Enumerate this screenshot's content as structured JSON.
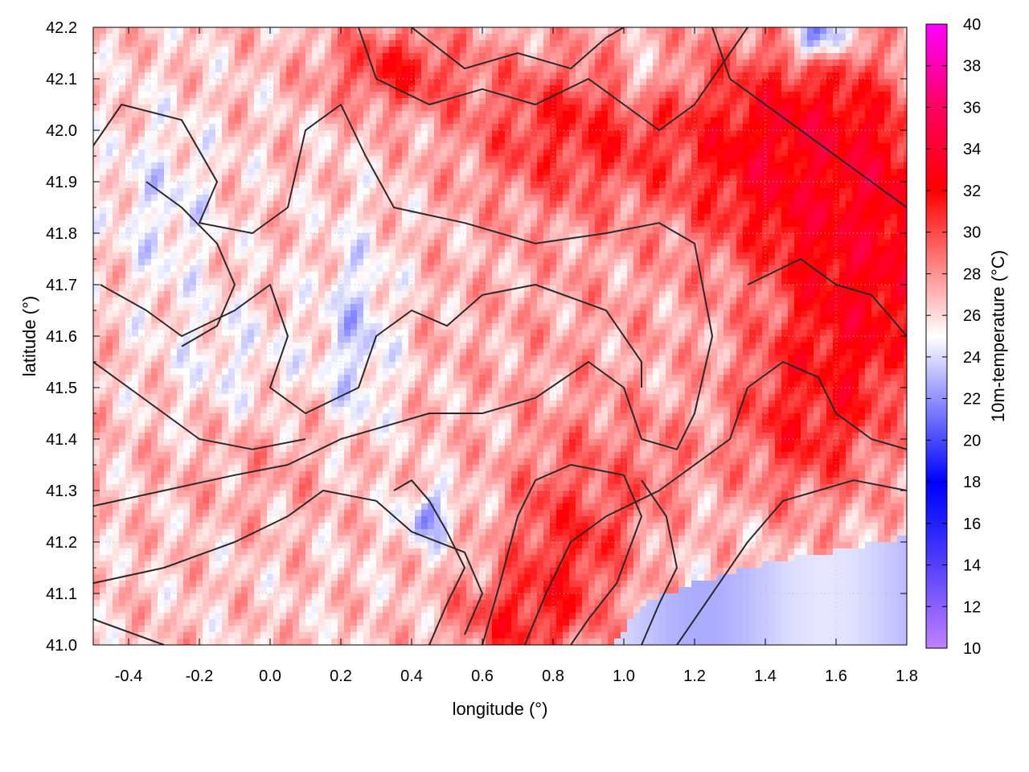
{
  "chart_data": {
    "type": "heatmap",
    "xlabel": "longitude (°)",
    "ylabel": "latitude (°)",
    "colorbar_label": "10m-temperature (°C)",
    "xlim": [
      -0.5,
      1.8
    ],
    "ylim": [
      41.0,
      42.2
    ],
    "x_ticks": [
      -0.4,
      -0.2,
      0.0,
      0.2,
      0.4,
      0.6,
      0.8,
      1.0,
      1.2,
      1.4,
      1.6,
      1.8
    ],
    "x_tick_labels": [
      "-0.4",
      "-0.2",
      "0.0",
      "0.2",
      "0.4",
      "0.6",
      "0.8",
      "1.0",
      "1.2",
      "1.4",
      "1.6",
      "1.8"
    ],
    "y_ticks": [
      41.0,
      41.1,
      41.2,
      41.3,
      41.4,
      41.5,
      41.6,
      41.7,
      41.8,
      41.9,
      42.0,
      42.1,
      42.2
    ],
    "y_tick_labels": [
      "41.0",
      "41.1",
      "41.2",
      "41.3",
      "41.4",
      "41.5",
      "41.6",
      "41.7",
      "41.8",
      "41.9",
      "42.0",
      "42.1",
      "42.2"
    ],
    "colorbar_range": [
      10,
      40
    ],
    "colorbar_ticks": [
      10,
      12,
      14,
      16,
      18,
      20,
      22,
      24,
      26,
      28,
      30,
      32,
      34,
      36,
      38,
      40
    ],
    "colorbar_tick_labels": [
      "10",
      "12",
      "14",
      "16",
      "18",
      "20",
      "22",
      "24",
      "26",
      "28",
      "30",
      "32",
      "34",
      "36",
      "38",
      "40"
    ],
    "colormap": [
      {
        "value": 10,
        "color": "#c080ff"
      },
      {
        "value": 16,
        "color": "#2020ff"
      },
      {
        "value": 18,
        "color": "#0000ff"
      },
      {
        "value": 25,
        "color": "#ffffff"
      },
      {
        "value": 32,
        "color": "#ff0000"
      },
      {
        "value": 36,
        "color": "#ff0060"
      },
      {
        "value": 40,
        "color": "#ff00ff"
      }
    ],
    "grid": true,
    "overlay": "terrain height contour lines",
    "field_description": "temperature mostly 25-29 °C over the interior, up to 31-34 °C in the north-east and near the coast around lon 0.7-1.1, cooler bluish 22-24 °C valleys around lon 0.2-0.4 and over the sea in the south-east",
    "temperature_blobs": [
      {
        "lon": 1.45,
        "lat": 41.95,
        "sx": 0.3,
        "sy": 0.22,
        "t": 33
      },
      {
        "lon": 1.7,
        "lat": 41.75,
        "sx": 0.2,
        "sy": 0.28,
        "t": 33
      },
      {
        "lon": 0.85,
        "lat": 42.0,
        "sx": 0.3,
        "sy": 0.15,
        "t": 31
      },
      {
        "lon": 0.35,
        "lat": 42.12,
        "sx": 0.2,
        "sy": 0.08,
        "t": 31
      },
      {
        "lon": 1.5,
        "lat": 41.45,
        "sx": 0.2,
        "sy": 0.18,
        "t": 31
      },
      {
        "lon": 0.85,
        "lat": 41.2,
        "sx": 0.18,
        "sy": 0.15,
        "t": 31
      },
      {
        "lon": 0.7,
        "lat": 41.05,
        "sx": 0.18,
        "sy": 0.08,
        "t": 31
      },
      {
        "lon": 1.0,
        "lat": 41.35,
        "sx": 0.2,
        "sy": 0.1,
        "t": 29
      },
      {
        "lon": 0.0,
        "lat": 41.35,
        "sx": 0.3,
        "sy": 0.12,
        "t": 27.5
      },
      {
        "lon": 0.85,
        "lat": 41.6,
        "sx": 0.4,
        "sy": 0.25,
        "t": 27.5
      },
      {
        "lon": -0.3,
        "lat": 41.85,
        "sx": 0.15,
        "sy": 0.18,
        "t": 24.5
      },
      {
        "lon": 0.25,
        "lat": 41.6,
        "sx": 0.1,
        "sy": 0.2,
        "t": 23.5
      },
      {
        "lon": 0.45,
        "lat": 41.25,
        "sx": 0.07,
        "sy": 0.05,
        "t": 22
      },
      {
        "lon": 1.55,
        "lat": 42.18,
        "sx": 0.07,
        "sy": 0.04,
        "t": 18
      },
      {
        "lon": 1.05,
        "lat": 42.1,
        "sx": 0.08,
        "sy": 0.05,
        "t": 24
      },
      {
        "lon": -0.1,
        "lat": 41.55,
        "sx": 0.2,
        "sy": 0.12,
        "t": 25
      }
    ],
    "sea_region": {
      "coast": [
        [
          0.97,
          41.0
        ],
        [
          1.05,
          41.08
        ],
        [
          1.2,
          41.12
        ],
        [
          1.35,
          41.15
        ],
        [
          1.5,
          41.17
        ],
        [
          1.65,
          41.19
        ],
        [
          1.8,
          41.21
        ]
      ],
      "t": 23.5
    },
    "contours": [
      [
        [
          -0.5,
          41.97
        ],
        [
          -0.42,
          42.05
        ],
        [
          -0.25,
          42.02
        ],
        [
          -0.15,
          41.9
        ],
        [
          -0.2,
          41.82
        ],
        [
          -0.05,
          41.8
        ],
        [
          0.05,
          41.85
        ],
        [
          0.1,
          42.0
        ],
        [
          0.2,
          42.05
        ],
        [
          0.27,
          41.95
        ],
        [
          0.35,
          41.85
        ],
        [
          0.55,
          41.82
        ],
        [
          0.75,
          41.78
        ],
        [
          0.95,
          41.8
        ],
        [
          1.1,
          41.82
        ],
        [
          1.2,
          41.78
        ],
        [
          1.25,
          41.6
        ],
        [
          1.2,
          41.45
        ],
        [
          1.15,
          41.38
        ],
        [
          1.05,
          41.4
        ],
        [
          1.0,
          41.5
        ],
        [
          0.9,
          41.55
        ],
        [
          0.75,
          41.48
        ],
        [
          0.6,
          41.45
        ],
        [
          0.45,
          41.45
        ],
        [
          0.35,
          41.43
        ],
        [
          0.2,
          41.4
        ],
        [
          0.05,
          41.35
        ],
        [
          -0.1,
          41.33
        ],
        [
          -0.3,
          41.3
        ],
        [
          -0.5,
          41.27
        ]
      ],
      [
        [
          -0.48,
          41.7
        ],
        [
          -0.35,
          41.65
        ],
        [
          -0.25,
          41.6
        ],
        [
          -0.1,
          41.65
        ],
        [
          0.0,
          41.7
        ],
        [
          0.05,
          41.6
        ],
        [
          0.0,
          41.5
        ],
        [
          0.1,
          41.45
        ],
        [
          0.25,
          41.5
        ],
        [
          0.3,
          41.6
        ],
        [
          0.4,
          41.65
        ],
        [
          0.5,
          41.62
        ],
        [
          0.6,
          41.68
        ],
        [
          0.75,
          41.7
        ],
        [
          0.95,
          41.65
        ],
        [
          1.05,
          41.55
        ],
        [
          1.05,
          41.5
        ]
      ],
      [
        [
          -0.5,
          41.12
        ],
        [
          -0.3,
          41.15
        ],
        [
          -0.1,
          41.2
        ],
        [
          0.05,
          41.25
        ],
        [
          0.15,
          41.3
        ],
        [
          0.3,
          41.28
        ],
        [
          0.4,
          41.22
        ],
        [
          0.55,
          41.18
        ],
        [
          0.6,
          41.1
        ],
        [
          0.55,
          41.02
        ]
      ],
      [
        [
          -0.5,
          41.05
        ],
        [
          -0.3,
          41.0
        ]
      ],
      [
        [
          0.6,
          41.0
        ],
        [
          0.65,
          41.12
        ],
        [
          0.7,
          41.25
        ],
        [
          0.75,
          41.32
        ],
        [
          0.85,
          41.35
        ],
        [
          1.0,
          41.33
        ],
        [
          1.05,
          41.25
        ],
        [
          0.98,
          41.12
        ],
        [
          0.9,
          41.05
        ],
        [
          0.85,
          41.0
        ]
      ],
      [
        [
          0.72,
          41.0
        ],
        [
          0.78,
          41.1
        ],
        [
          0.85,
          41.2
        ],
        [
          0.95,
          41.25
        ],
        [
          1.1,
          41.3
        ],
        [
          1.2,
          41.35
        ],
        [
          1.3,
          41.4
        ],
        [
          1.35,
          41.5
        ],
        [
          1.45,
          41.55
        ],
        [
          1.55,
          41.52
        ],
        [
          1.6,
          41.45
        ],
        [
          1.7,
          41.4
        ],
        [
          1.8,
          41.38
        ]
      ],
      [
        [
          1.25,
          42.2
        ],
        [
          1.3,
          42.1
        ],
        [
          1.4,
          42.05
        ],
        [
          1.5,
          42.0
        ],
        [
          1.6,
          41.95
        ],
        [
          1.7,
          41.9
        ],
        [
          1.8,
          41.85
        ]
      ],
      [
        [
          1.35,
          41.7
        ],
        [
          1.5,
          41.75
        ],
        [
          1.6,
          41.7
        ],
        [
          1.7,
          41.68
        ],
        [
          1.8,
          41.6
        ]
      ],
      [
        [
          0.25,
          42.2
        ],
        [
          0.3,
          42.1
        ],
        [
          0.45,
          42.05
        ],
        [
          0.6,
          42.08
        ],
        [
          0.75,
          42.05
        ],
        [
          0.9,
          42.1
        ],
        [
          1.0,
          42.05
        ],
        [
          1.1,
          42.0
        ],
        [
          1.2,
          42.05
        ],
        [
          1.3,
          42.15
        ],
        [
          1.35,
          42.2
        ]
      ],
      [
        [
          0.4,
          42.2
        ],
        [
          0.55,
          42.12
        ],
        [
          0.7,
          42.15
        ],
        [
          0.85,
          42.12
        ],
        [
          0.95,
          42.18
        ],
        [
          1.0,
          42.2
        ]
      ],
      [
        [
          -0.5,
          41.55
        ],
        [
          -0.4,
          41.5
        ],
        [
          -0.3,
          41.45
        ],
        [
          -0.2,
          41.4
        ],
        [
          -0.05,
          41.38
        ],
        [
          0.1,
          41.4
        ]
      ],
      [
        [
          -0.35,
          41.9
        ],
        [
          -0.25,
          41.85
        ],
        [
          -0.15,
          41.78
        ],
        [
          -0.1,
          41.7
        ],
        [
          -0.15,
          41.62
        ],
        [
          -0.25,
          41.58
        ]
      ],
      [
        [
          1.15,
          41.0
        ],
        [
          1.25,
          41.1
        ],
        [
          1.35,
          41.2
        ],
        [
          1.45,
          41.28
        ],
        [
          1.55,
          41.3
        ],
        [
          1.65,
          41.32
        ],
        [
          1.8,
          41.3
        ]
      ],
      [
        [
          0.45,
          41.0
        ],
        [
          0.5,
          41.08
        ],
        [
          0.55,
          41.15
        ],
        [
          0.5,
          41.22
        ],
        [
          0.45,
          41.28
        ],
        [
          0.4,
          41.32
        ],
        [
          0.35,
          41.3
        ]
      ],
      [
        [
          1.05,
          41.0
        ],
        [
          1.1,
          41.08
        ],
        [
          1.15,
          41.15
        ],
        [
          1.12,
          41.25
        ],
        [
          1.05,
          41.32
        ]
      ]
    ]
  }
}
